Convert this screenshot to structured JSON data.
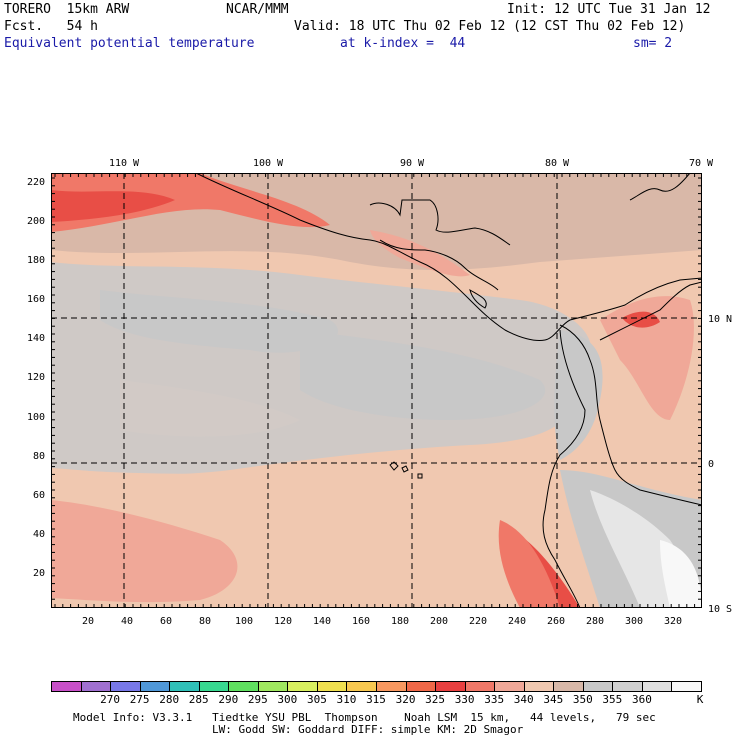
{
  "header": {
    "model": "TORERO  15km ARW",
    "org": "NCAR/MMM",
    "init": "Init: 12 UTC Tue 31 Jan 12",
    "fcst": "Fcst.   54 h",
    "valid": "Valid: 18 UTC Thu 02 Feb 12 (12 CST Thu 02 Feb 12)",
    "field": "Equivalent potential temperature",
    "level": "at k-index =  44",
    "smooth": "sm= 2"
  },
  "map": {
    "top_lon_labels": [
      "110 W",
      "100 W",
      "90 W",
      "80 W",
      "70 W"
    ],
    "right_lat_labels": [
      "10 N",
      "0",
      "10 S"
    ],
    "y_ticks": [
      "220",
      "200",
      "180",
      "160",
      "140",
      "120",
      "100",
      "80",
      "60",
      "40",
      "20"
    ],
    "x_ticks": [
      "20",
      "40",
      "60",
      "80",
      "100",
      "120",
      "140",
      "160",
      "180",
      "200",
      "220",
      "240",
      "260",
      "280",
      "300",
      "320"
    ]
  },
  "colorbar": {
    "colors": [
      "#c850c8",
      "#a070d0",
      "#7878e8",
      "#5098d8",
      "#30c0b8",
      "#38d890",
      "#60e060",
      "#a0e860",
      "#d8f060",
      "#f0e050",
      "#f8c850",
      "#f89860",
      "#f06848",
      "#e84040",
      "#f07868",
      "#f0a898",
      "#f0c8b0",
      "#d8b8a8",
      "#c8c8c8",
      "#d0d0d0",
      "#e0e0e0",
      "#f8f8f8"
    ],
    "labels": [
      "270",
      "275",
      "280",
      "285",
      "290",
      "295",
      "300",
      "305",
      "310",
      "315",
      "320",
      "325",
      "330",
      "335",
      "340",
      "345",
      "350",
      "355",
      "360"
    ],
    "unit": "K"
  },
  "footer": {
    "line1": "Model Info: V3.3.1   Tiedtke YSU PBL  Thompson    Noah LSM  15 km,   44 levels,   79 sec",
    "line2": "LW: Godd SW: Goddard DIFF: simple KM: 2D Smagor"
  }
}
